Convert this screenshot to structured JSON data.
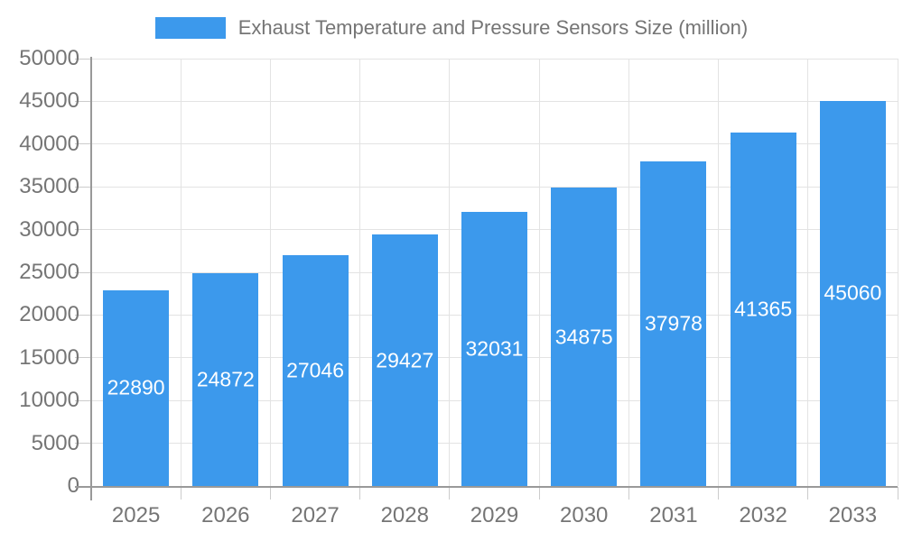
{
  "legend": {
    "label": "Exhaust Temperature and Pressure Sensors Size (million)"
  },
  "chart_data": {
    "type": "bar",
    "title": "Exhaust Temperature and Pressure Sensors Size (million)",
    "categories": [
      "2025",
      "2026",
      "2027",
      "2028",
      "2029",
      "2030",
      "2031",
      "2032",
      "2033"
    ],
    "series": [
      {
        "name": "Exhaust Temperature and Pressure Sensors Size (million)",
        "values": [
          22890,
          24872,
          27046,
          29427,
          32031,
          34875,
          37978,
          41365,
          45060
        ]
      }
    ],
    "xlabel": "",
    "ylabel": "",
    "ylim": [
      0,
      50000
    ],
    "ytick_step": 5000,
    "ytick_labels": [
      "0",
      "5000",
      "10000",
      "15000",
      "20000",
      "25000",
      "30000",
      "35000",
      "40000",
      "45000",
      "50000"
    ],
    "grid": true,
    "legend_position": "top",
    "value_labels": "inside-center",
    "colors": {
      "bar": "#3c99ec",
      "bar_value_text": "#ffffff",
      "axis_text": "#757575",
      "legend_text": "#757575",
      "gridline": "#e3e3e3",
      "axis_line": "#999999",
      "tick": "#cccccc",
      "background": "#ffffff"
    }
  }
}
